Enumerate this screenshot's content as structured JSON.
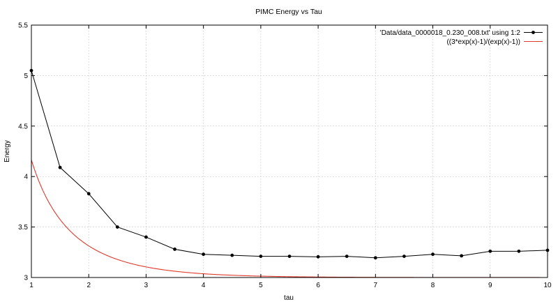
{
  "chart_data": {
    "type": "line",
    "title": "PIMC Energy vs Tau",
    "xlabel": "tau",
    "ylabel": "Energy",
    "xlim": [
      1,
      10
    ],
    "ylim": [
      3,
      5.5
    ],
    "xticks": [
      1,
      2,
      3,
      4,
      5,
      6,
      7,
      8,
      9,
      10
    ],
    "yticks": [
      3,
      3.5,
      4,
      4.5,
      5,
      5.5
    ],
    "ytick_labels": [
      "3",
      "3.5",
      "4",
      "4.5",
      "5",
      "5.5"
    ],
    "grid": true,
    "legend_position": "top-right",
    "series": [
      {
        "name": "'Data/data_0000018_0.230_008.txt' using 1:2",
        "color": "#000000",
        "style": "linespoints",
        "x": [
          1,
          1.5,
          2,
          2.5,
          3,
          3.5,
          4,
          4.5,
          5,
          5.5,
          6,
          6.5,
          7,
          7.5,
          8,
          8.5,
          9,
          9.5,
          10
        ],
        "y": [
          5.05,
          4.09,
          3.83,
          3.5,
          3.4,
          3.28,
          3.23,
          3.22,
          3.21,
          3.21,
          3.205,
          3.21,
          3.195,
          3.21,
          3.23,
          3.215,
          3.26,
          3.26,
          3.27
        ]
      },
      {
        "name": "((3*exp(x)-1)/(exp(x)-1))",
        "color": "#e0392b",
        "style": "lines",
        "function": "(3*exp(x)-1)/(exp(x)-1)"
      }
    ]
  }
}
